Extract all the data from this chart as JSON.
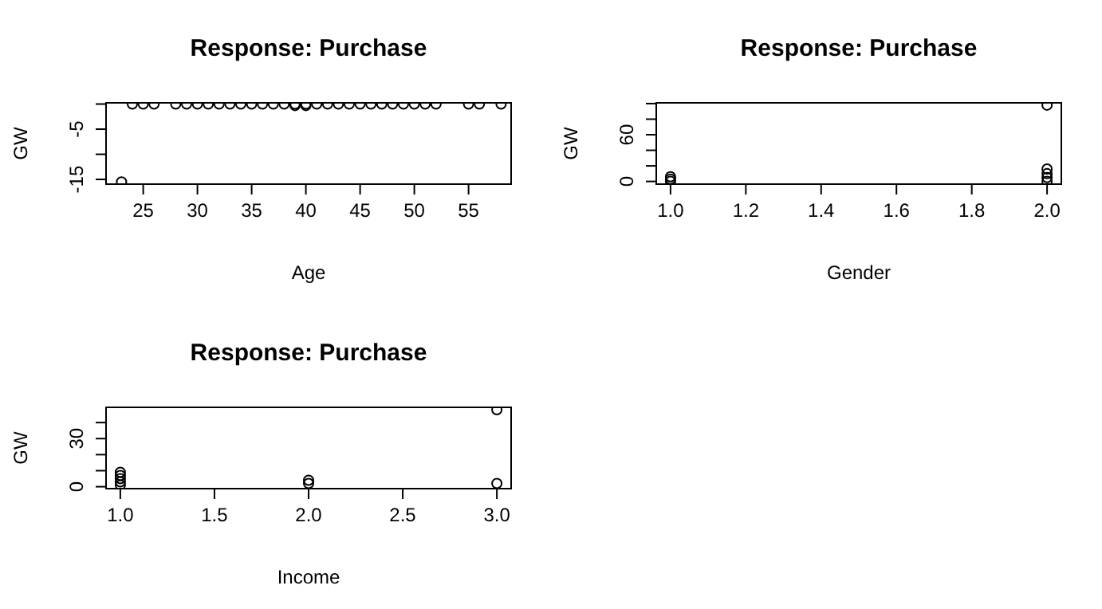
{
  "chart_data": [
    {
      "type": "scatter",
      "title": "Response: Purchase",
      "xlabel": "Age",
      "ylabel": "GW",
      "marker": "circle",
      "grid": false,
      "legend": false,
      "x": [
        23,
        24,
        25,
        26,
        28,
        29,
        30,
        31,
        32,
        33,
        34,
        35,
        36,
        37,
        38,
        39,
        39,
        40,
        40,
        41,
        42,
        43,
        44,
        45,
        46,
        47,
        48,
        49,
        50,
        51,
        52,
        55,
        56,
        58
      ],
      "series": [
        {
          "color": "#000000",
          "values": [
            -15.5,
            0,
            0,
            0,
            0,
            0,
            0,
            0,
            0,
            0,
            0,
            0,
            0,
            0,
            0,
            0,
            -0.3,
            0,
            -0.3,
            0,
            0,
            0,
            0,
            0,
            0,
            0,
            0,
            0,
            0,
            0,
            0,
            0,
            0,
            0
          ]
        }
      ],
      "xlim": [
        21.5,
        59
      ],
      "xticks": [
        25,
        30,
        35,
        40,
        45,
        50,
        55
      ],
      "ylim": [
        -16.1,
        0.4
      ],
      "yticks": [
        -15,
        {
          "value": -10,
          "label": null
        },
        -5,
        {
          "value": 0,
          "label": null
        }
      ]
    },
    {
      "type": "scatter",
      "title": "Response: Purchase",
      "xlabel": "Gender",
      "ylabel": "GW",
      "marker": "circle",
      "grid": false,
      "legend": false,
      "x": [
        1,
        1,
        1,
        2,
        2,
        2,
        2,
        2
      ],
      "series": [
        {
          "color": "#000000",
          "values": [
            0,
            3,
            6,
            0,
            5,
            10,
            16,
            98
          ]
        }
      ],
      "xlim": [
        0.96,
        2.04
      ],
      "xticks": [
        {
          "value": 1,
          "label": "1.0"
        },
        1.2,
        1.4,
        1.6,
        1.8,
        {
          "value": 2,
          "label": "2.0"
        }
      ],
      "ylim": [
        -4.5,
        102
      ],
      "yticks": [
        0,
        {
          "value": 20,
          "label": null
        },
        {
          "value": 40,
          "label": null
        },
        60,
        {
          "value": 80,
          "label": null
        },
        {
          "value": 100,
          "label": null
        }
      ]
    },
    {
      "type": "scatter",
      "title": "Response: Purchase",
      "xlabel": "Income",
      "ylabel": "GW",
      "marker": "circle",
      "grid": false,
      "legend": false,
      "x": [
        1,
        1,
        1,
        1,
        1,
        2,
        2,
        3,
        3
      ],
      "series": [
        {
          "color": "#000000",
          "values": [
            1,
            3,
            5,
            7,
            9,
            2,
            4,
            2,
            48
          ]
        }
      ],
      "xlim": [
        0.92,
        3.08
      ],
      "xticks": [
        {
          "value": 1,
          "label": "1.0"
        },
        1.5,
        {
          "value": 2,
          "label": "2.0"
        },
        2.5,
        {
          "value": 3,
          "label": "3.0"
        }
      ],
      "ylim": [
        -1.7,
        50
      ],
      "yticks": [
        0,
        {
          "value": 10,
          "label": null
        },
        {
          "value": 20,
          "label": null
        },
        30,
        {
          "value": 40,
          "label": null
        }
      ]
    }
  ]
}
